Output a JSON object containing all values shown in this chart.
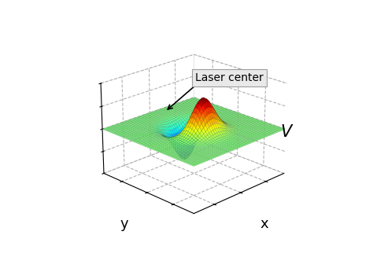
{
  "title": "",
  "xlabel": "x",
  "ylabel": "y",
  "zlabel": "V",
  "annotation_text": "Laser center",
  "x_range": [
    -3.5,
    3.5
  ],
  "y_range": [
    -3.5,
    3.5
  ],
  "n_points": 50,
  "peak_amplitude": 1.0,
  "sigma": 0.7,
  "colormap": "jet",
  "background_color": "#ffffff",
  "label_fontsize": 13,
  "annotation_fontsize": 10,
  "elev": 22,
  "azim": -135
}
